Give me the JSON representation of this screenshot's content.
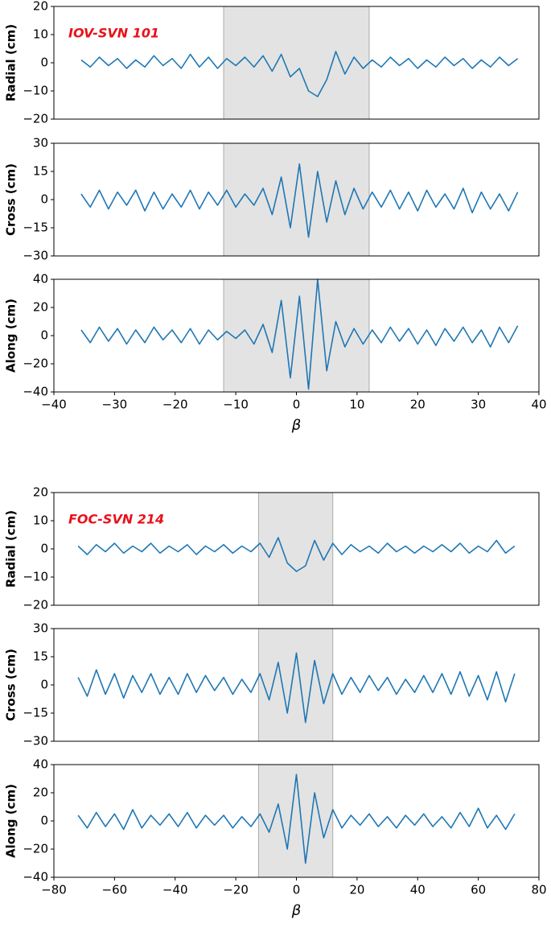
{
  "chart_data": [
    {
      "type": "line",
      "ylabel": "Radial (cm)",
      "annotation": "IOV-SVN 101",
      "xlim": [
        -40,
        40
      ],
      "ylim": [
        -20,
        20
      ],
      "yticks": [
        {
          "value": -20,
          "label": "−20"
        },
        {
          "value": -10,
          "label": "−10"
        },
        0,
        10,
        20
      ],
      "shade": [
        -12,
        12
      ],
      "shade_color": "#e3e3e3",
      "x": [
        -35.5,
        -34,
        -32.5,
        -31,
        -29.5,
        -28,
        -26.5,
        -25,
        -23.5,
        -22,
        -20.5,
        -19,
        -17.5,
        -16,
        -14.5,
        -13,
        -11.5,
        -10,
        -8.5,
        -7,
        -5.5,
        -4,
        -2.5,
        -1,
        0.5,
        2,
        3.5,
        5,
        6.5,
        8,
        9.5,
        11,
        12.5,
        14,
        15.5,
        17,
        18.5,
        20,
        21.5,
        23,
        24.5,
        26,
        27.5,
        29,
        30.5,
        32,
        33.5,
        35,
        36.5
      ],
      "series": [
        {
          "color": "#1f77b4",
          "values": [
            1,
            -1.5,
            2,
            -1,
            1.5,
            -2,
            1,
            -1.5,
            2.5,
            -1,
            1.5,
            -2,
            3,
            -1.5,
            2,
            -2,
            1.5,
            -1,
            2,
            -1.5,
            2.5,
            -3,
            3,
            -5,
            -2,
            -10,
            -12,
            -6,
            4,
            -4,
            2,
            -2,
            1,
            -1.5,
            2,
            -1,
            1.5,
            -2,
            1,
            -1.5,
            2,
            -1,
            1.5,
            -2,
            1,
            -1.5,
            2,
            -1,
            1.5
          ]
        }
      ]
    },
    {
      "type": "line",
      "ylabel": "Cross (cm)",
      "xlim": [
        -40,
        40
      ],
      "ylim": [
        -30,
        30
      ],
      "yticks": [
        {
          "value": -30,
          "label": "−30"
        },
        {
          "value": -15,
          "label": "−15"
        },
        0,
        15,
        30
      ],
      "shade": [
        -12,
        12
      ],
      "shade_color": "#e3e3e3",
      "x": [
        -35.5,
        -34,
        -32.5,
        -31,
        -29.5,
        -28,
        -26.5,
        -25,
        -23.5,
        -22,
        -20.5,
        -19,
        -17.5,
        -16,
        -14.5,
        -13,
        -11.5,
        -10,
        -8.5,
        -7,
        -5.5,
        -4,
        -2.5,
        -1,
        0.5,
        2,
        3.5,
        5,
        6.5,
        8,
        9.5,
        11,
        12.5,
        14,
        15.5,
        17,
        18.5,
        20,
        21.5,
        23,
        24.5,
        26,
        27.5,
        29,
        30.5,
        32,
        33.5,
        35,
        36.5
      ],
      "series": [
        {
          "color": "#1f77b4",
          "values": [
            3,
            -4,
            5,
            -5,
            4,
            -3,
            5,
            -6,
            4,
            -5,
            3,
            -4,
            5,
            -5,
            4,
            -3,
            5,
            -4,
            3,
            -3,
            6,
            -8,
            12,
            -15,
            19,
            -20,
            15,
            -12,
            10,
            -8,
            6,
            -5,
            4,
            -4,
            5,
            -5,
            4,
            -6,
            5,
            -4,
            3,
            -5,
            6,
            -7,
            4,
            -5,
            3,
            -6,
            4
          ]
        }
      ]
    },
    {
      "type": "line",
      "ylabel": "Along (cm)",
      "xlabel": "β",
      "xlim": [
        -40,
        40
      ],
      "ylim": [
        -40,
        40
      ],
      "xticks": [
        {
          "value": -40,
          "label": "−40"
        },
        {
          "value": -30,
          "label": "−30"
        },
        {
          "value": -20,
          "label": "−20"
        },
        {
          "value": -10,
          "label": "−10"
        },
        0,
        10,
        20,
        30,
        40
      ],
      "yticks": [
        {
          "value": -40,
          "label": "−40"
        },
        {
          "value": -20,
          "label": "−20"
        },
        0,
        20,
        40
      ],
      "shade": [
        -12,
        12
      ],
      "shade_color": "#e3e3e3",
      "x": [
        -35.5,
        -34,
        -32.5,
        -31,
        -29.5,
        -28,
        -26.5,
        -25,
        -23.5,
        -22,
        -20.5,
        -19,
        -17.5,
        -16,
        -14.5,
        -13,
        -11.5,
        -10,
        -8.5,
        -7,
        -5.5,
        -4,
        -2.5,
        -1,
        0.5,
        2,
        3.5,
        5,
        6.5,
        8,
        9.5,
        11,
        12.5,
        14,
        15.5,
        17,
        18.5,
        20,
        21.5,
        23,
        24.5,
        26,
        27.5,
        29,
        30.5,
        32,
        33.5,
        35,
        36.5
      ],
      "series": [
        {
          "color": "#1f77b4",
          "values": [
            4,
            -5,
            6,
            -4,
            5,
            -6,
            4,
            -5,
            6,
            -3,
            4,
            -5,
            5,
            -6,
            4,
            -3,
            3,
            -2,
            4,
            -6,
            8,
            -12,
            25,
            -30,
            28,
            -38,
            40,
            -25,
            10,
            -8,
            5,
            -6,
            4,
            -5,
            6,
            -4,
            5,
            -6,
            4,
            -7,
            5,
            -4,
            6,
            -5,
            4,
            -8,
            6,
            -5,
            7
          ]
        }
      ]
    },
    {
      "type": "line",
      "ylabel": "Radial (cm)",
      "annotation": "FOC-SVN 214",
      "xlim": [
        -80,
        80
      ],
      "ylim": [
        -20,
        20
      ],
      "yticks": [
        {
          "value": -20,
          "label": "−20"
        },
        {
          "value": -10,
          "label": "−10"
        },
        0,
        10,
        20
      ],
      "shade": [
        -12.5,
        12
      ],
      "shade_color": "#e3e3e3",
      "x": [
        -72,
        -69,
        -66,
        -63,
        -60,
        -57,
        -54,
        -51,
        -48,
        -45,
        -42,
        -39,
        -36,
        -33,
        -30,
        -27,
        -24,
        -21,
        -18,
        -15,
        -12,
        -9,
        -6,
        -3,
        0,
        3,
        6,
        9,
        12,
        15,
        18,
        21,
        24,
        27,
        30,
        33,
        36,
        39,
        42,
        45,
        48,
        51,
        54,
        57,
        60,
        63,
        66,
        69,
        72
      ],
      "series": [
        {
          "color": "#1f77b4",
          "values": [
            1,
            -2,
            1.5,
            -1,
            2,
            -1.5,
            1,
            -1,
            2,
            -1.5,
            1,
            -1,
            1.5,
            -2,
            1,
            -1,
            1.5,
            -1.5,
            1,
            -1,
            2,
            -3,
            4,
            -5,
            -8,
            -6,
            3,
            -4,
            2,
            -2,
            1.5,
            -1,
            1,
            -1.5,
            2,
            -1,
            1,
            -1.5,
            1,
            -1,
            1.5,
            -1,
            2,
            -1.5,
            1,
            -1,
            3,
            -1.5,
            1
          ]
        }
      ]
    },
    {
      "type": "line",
      "ylabel": "Cross (cm)",
      "xlim": [
        -80,
        80
      ],
      "ylim": [
        -30,
        30
      ],
      "yticks": [
        {
          "value": -30,
          "label": "−30"
        },
        {
          "value": -15,
          "label": "−15"
        },
        0,
        15,
        30
      ],
      "shade": [
        -12.5,
        12
      ],
      "shade_color": "#e3e3e3",
      "x": [
        -72,
        -69,
        -66,
        -63,
        -60,
        -57,
        -54,
        -51,
        -48,
        -45,
        -42,
        -39,
        -36,
        -33,
        -30,
        -27,
        -24,
        -21,
        -18,
        -15,
        -12,
        -9,
        -6,
        -3,
        0,
        3,
        6,
        9,
        12,
        15,
        18,
        21,
        24,
        27,
        30,
        33,
        36,
        39,
        42,
        45,
        48,
        51,
        54,
        57,
        60,
        63,
        66,
        69,
        72
      ],
      "series": [
        {
          "color": "#1f77b4",
          "values": [
            4,
            -6,
            8,
            -5,
            6,
            -7,
            5,
            -4,
            6,
            -5,
            4,
            -5,
            6,
            -4,
            5,
            -3,
            4,
            -5,
            3,
            -4,
            6,
            -8,
            12,
            -15,
            17,
            -20,
            13,
            -10,
            6,
            -5,
            4,
            -4,
            5,
            -3,
            4,
            -5,
            3,
            -4,
            5,
            -4,
            6,
            -5,
            7,
            -6,
            5,
            -8,
            7,
            -9,
            6
          ]
        }
      ]
    },
    {
      "type": "line",
      "ylabel": "Along (cm)",
      "xlabel": "β",
      "xlim": [
        -80,
        80
      ],
      "ylim": [
        -40,
        40
      ],
      "xticks": [
        {
          "value": -80,
          "label": "−80"
        },
        {
          "value": -60,
          "label": "−60"
        },
        {
          "value": -40,
          "label": "−40"
        },
        {
          "value": -20,
          "label": "−20"
        },
        0,
        20,
        40,
        60,
        80
      ],
      "yticks": [
        {
          "value": -40,
          "label": "−40"
        },
        {
          "value": -20,
          "label": "−20"
        },
        0,
        20,
        40
      ],
      "shade": [
        -12.5,
        12
      ],
      "shade_color": "#e3e3e3",
      "x": [
        -72,
        -69,
        -66,
        -63,
        -60,
        -57,
        -54,
        -51,
        -48,
        -45,
        -42,
        -39,
        -36,
        -33,
        -30,
        -27,
        -24,
        -21,
        -18,
        -15,
        -12,
        -9,
        -6,
        -3,
        0,
        3,
        6,
        9,
        12,
        15,
        18,
        21,
        24,
        27,
        30,
        33,
        36,
        39,
        42,
        45,
        48,
        51,
        54,
        57,
        60,
        63,
        66,
        69,
        72
      ],
      "series": [
        {
          "color": "#1f77b4",
          "values": [
            4,
            -5,
            6,
            -4,
            5,
            -6,
            8,
            -5,
            4,
            -3,
            5,
            -4,
            6,
            -5,
            4,
            -3,
            4,
            -5,
            3,
            -4,
            5,
            -8,
            12,
            -20,
            33,
            -30,
            20,
            -12,
            8,
            -5,
            4,
            -3,
            5,
            -4,
            3,
            -5,
            4,
            -3,
            5,
            -4,
            3,
            -5,
            6,
            -4,
            9,
            -5,
            4,
            -6,
            5
          ]
        }
      ]
    }
  ]
}
